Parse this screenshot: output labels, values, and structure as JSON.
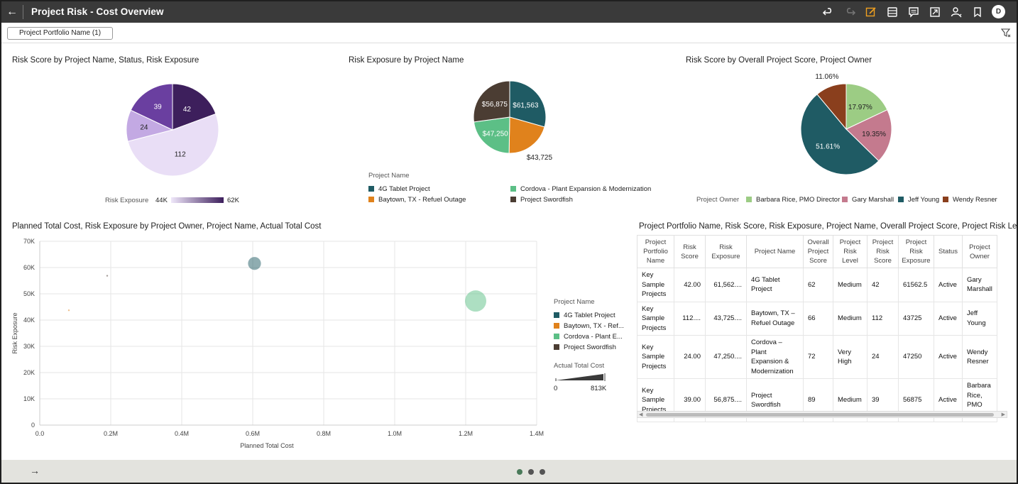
{
  "header": {
    "title": "Project Risk - Cost Overview",
    "avatar_initial": "D"
  },
  "filters": {
    "chip_label": "Project Portfolio Name (1)"
  },
  "icons": [
    "back-arrow-icon",
    "undo-icon",
    "redo-icon",
    "edit-icon",
    "data-icon",
    "comment-icon",
    "present-icon",
    "share-icon",
    "bookmark-icon",
    "filter-icon",
    "forward-arrow-icon"
  ],
  "colors": {
    "topbar": "#3a3a3a",
    "p_4g": "#1f5b64",
    "p_baytown": "#e0821c",
    "p_cordova": "#5cbf86",
    "p_swordfish": "#4b3d33",
    "owner_barbara": "#9ccc84",
    "owner_gary": "#c47a8e",
    "owner_jeff": "#1f5b64",
    "owner_wendy": "#8a3f1d",
    "page_dot_active": "#4a7a5a"
  },
  "charts": {
    "risk_score_pie": {
      "title": "Risk Score by Project Name, Status, Risk Exposure",
      "legend_label": "Risk Exposure",
      "legend_min": "44K",
      "legend_max": "62K"
    },
    "risk_exposure_pie": {
      "title": "Risk Exposure by Project Name",
      "legend_title": "Project Name",
      "legend": [
        "4G Tablet Project",
        "Cordova - Plant Expansion & Modernization",
        "Baytown, TX - Refuel Outage",
        "Project Swordfish"
      ]
    },
    "owner_pie": {
      "title": "Risk Score by Overall Project Score, Project Owner",
      "legend_title": "Project Owner",
      "legend": [
        "Barbara Rice, PMO Director",
        "Gary Marshall",
        "Jeff Young",
        "Wendy Resner"
      ]
    },
    "scatter": {
      "title": "Planned Total Cost, Risk Exposure by Project Owner, Project Name, Actual Total Cost",
      "xlabel": "Planned Total Cost",
      "ylabel": "Risk Exposure",
      "x_ticks": [
        "0.0",
        "0.2M",
        "0.4M",
        "0.6M",
        "0.8M",
        "1.0M",
        "1.2M",
        "1.4M"
      ],
      "y_ticks": [
        "0",
        "10K",
        "20K",
        "30K",
        "40K",
        "50K",
        "60K",
        "70K"
      ],
      "legend_title": "Project Name",
      "legend": [
        "4G Tablet Project",
        "Baytown, TX - Ref...",
        "Cordova - Plant E...",
        "Project Swordfish"
      ],
      "size_title": "Actual Total Cost",
      "size_min": "0",
      "size_max": "813K"
    },
    "table": {
      "title": "Project Portfolio Name, Risk Score, Risk Exposure, Project Name, Overall Project Score, Project Risk Leve..."
    }
  },
  "chart_data": [
    {
      "type": "pie",
      "title": "Risk Score by Project Name, Status, Risk Exposure",
      "slices": [
        {
          "label": "42",
          "value": 42,
          "project": "4G Tablet Project",
          "risk_exposure": 61563,
          "color": "#3d1f5c"
        },
        {
          "label": "112",
          "value": 112,
          "project": "Baytown, TX - Refuel Outage",
          "risk_exposure": 43725,
          "color": "#e9def6"
        },
        {
          "label": "24",
          "value": 24,
          "project": "Cordova - Plant Expansion & Modernization",
          "risk_exposure": 47250,
          "color": "#c3a9e3"
        },
        {
          "label": "39",
          "value": 39,
          "project": "Project Swordfish",
          "risk_exposure": 56875,
          "color": "#6a3fa0"
        }
      ]
    },
    {
      "type": "pie",
      "title": "Risk Exposure by Project Name",
      "slices": [
        {
          "label": "$61,563",
          "value": 61563,
          "name": "4G Tablet Project",
          "color": "#1f5b64"
        },
        {
          "label": "$43,725",
          "value": 43725,
          "name": "Baytown, TX - Refuel Outage",
          "color": "#e0821c"
        },
        {
          "label": "$47,250",
          "value": 47250,
          "name": "Cordova - Plant Expansion & Modernization",
          "color": "#5cbf86"
        },
        {
          "label": "$56,875",
          "value": 56875,
          "name": "Project Swordfish",
          "color": "#4b3d33"
        }
      ]
    },
    {
      "type": "pie",
      "title": "Risk Score by Overall Project Score, Project Owner",
      "slices": [
        {
          "label": "17.97%",
          "value": 17.97,
          "name": "Barbara Rice, PMO Director",
          "color": "#9ccc84"
        },
        {
          "label": "19.35%",
          "value": 19.35,
          "name": "Gary Marshall",
          "color": "#c47a8e"
        },
        {
          "label": "51.61%",
          "value": 51.61,
          "name": "Jeff Young",
          "color": "#1f5b64"
        },
        {
          "label": "11.06%",
          "value": 11.06,
          "name": "Wendy Resner",
          "color": "#8a3f1d"
        }
      ]
    },
    {
      "type": "scatter",
      "title": "Planned Total Cost, Risk Exposure by Project Owner, Project Name, Actual Total Cost",
      "xlabel": "Planned Total Cost",
      "ylabel": "Risk Exposure",
      "xlim": [
        0,
        1400000
      ],
      "ylim": [
        0,
        70000
      ],
      "points": [
        {
          "name": "4G Tablet Project",
          "x": 605000,
          "y": 61563,
          "size": 300000,
          "color": "#1f5b64"
        },
        {
          "name": "Baytown, TX - Refuel Outage",
          "x": 82000,
          "y": 43725,
          "size": 3000,
          "color": "#e0821c"
        },
        {
          "name": "Cordova - Plant Expansion & Modernization",
          "x": 1228000,
          "y": 47250,
          "size": 813000,
          "color": "#5cbf86"
        },
        {
          "name": "Project Swordfish",
          "x": 190000,
          "y": 56875,
          "size": 3000,
          "color": "#4b3d33"
        }
      ]
    },
    {
      "type": "table",
      "title": "Project Portfolio Name, Risk Score, Risk Exposure, Project Name, Overall Project Score, Project Risk Leve...",
      "columns": [
        "Project Portfolio Name",
        "Risk Score",
        "Risk Exposure",
        "Project Name",
        "Overall Project Score",
        "Project Risk Level",
        "Project Risk Score",
        "Project Risk Exposure",
        "Status",
        "Project Owner"
      ],
      "rows": [
        [
          "Key Sample Projects",
          "42.00",
          "61,562....",
          "4G Tablet Project",
          "62",
          "Medium",
          "42",
          "61562.5",
          "Active",
          "Gary Marshall"
        ],
        [
          "Key Sample Projects",
          "112....",
          "43,725....",
          "Baytown, TX – Refuel Outage",
          "66",
          "Medium",
          "112",
          "43725",
          "Active",
          "Jeff Young"
        ],
        [
          "Key Sample Projects",
          "24.00",
          "47,250....",
          "Cordova – Plant Expansion & Modernization",
          "72",
          "Very High",
          "24",
          "47250",
          "Active",
          "Wendy Resner"
        ],
        [
          "Key Sample Projects",
          "39.00",
          "56,875....",
          "Project Swordfish",
          "89",
          "Medium",
          "39",
          "56875",
          "Active",
          "Barbara Rice, PMO Director"
        ]
      ]
    }
  ],
  "footer": {
    "pages": 3,
    "active_page": 1
  }
}
